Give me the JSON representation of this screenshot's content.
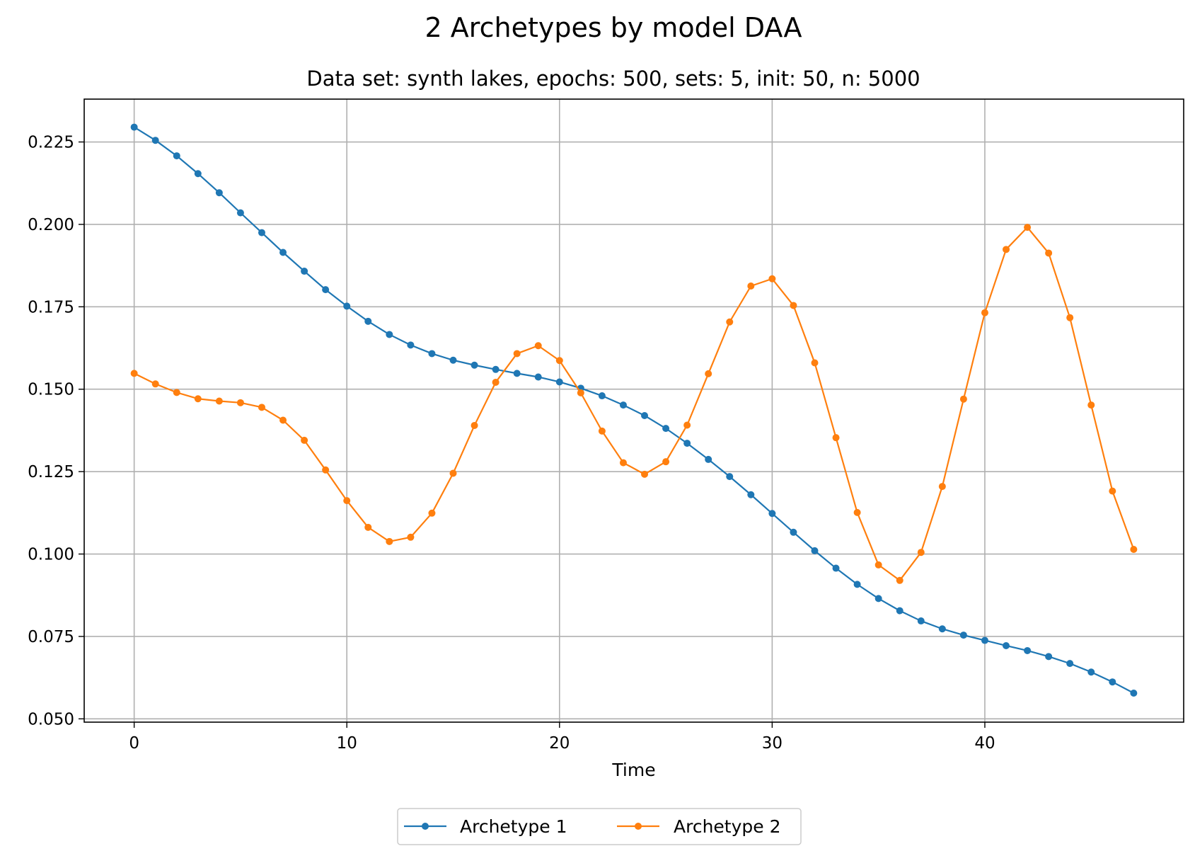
{
  "chart_data": {
    "type": "line",
    "title": "2 Archetypes by model DAA",
    "subtitle": "Data set: synth lakes, epochs: 500, sets: 5, init: 50, n: 5000",
    "xlabel": "Time",
    "ylabel": "",
    "xlim": [
      -2.35,
      49.35
    ],
    "ylim": [
      0.049,
      0.238
    ],
    "xticks": [
      0,
      10,
      20,
      30,
      40
    ],
    "xtick_labels": [
      "0",
      "10",
      "20",
      "30",
      "40"
    ],
    "yticks": [
      0.05,
      0.075,
      0.1,
      0.125,
      0.15,
      0.175,
      0.2,
      0.225
    ],
    "ytick_labels": [
      "0.050",
      "0.075",
      "0.100",
      "0.125",
      "0.150",
      "0.175",
      "0.200",
      "0.225"
    ],
    "grid": true,
    "legend_position": "bottom-center",
    "x": [
      0,
      1,
      2,
      3,
      4,
      5,
      6,
      7,
      8,
      9,
      10,
      11,
      12,
      13,
      14,
      15,
      16,
      17,
      18,
      19,
      20,
      21,
      22,
      23,
      24,
      25,
      26,
      27,
      28,
      29,
      30,
      31,
      32,
      33,
      34,
      35,
      36,
      37,
      38,
      39,
      40,
      41,
      42,
      43,
      44,
      45,
      46,
      47
    ],
    "series": [
      {
        "name": "Archetype 1",
        "color": "#1f77b4",
        "values": [
          0.2295,
          0.2255,
          0.2208,
          0.2154,
          0.2096,
          0.2035,
          0.1975,
          0.1915,
          0.1858,
          0.1802,
          0.1752,
          0.1706,
          0.1666,
          0.1634,
          0.1608,
          0.1588,
          0.1573,
          0.156,
          0.1548,
          0.1537,
          0.1522,
          0.1503,
          0.148,
          0.1452,
          0.142,
          0.1381,
          0.1336,
          0.1287,
          0.1235,
          0.118,
          0.1123,
          0.1066,
          0.101,
          0.0957,
          0.0908,
          0.0865,
          0.0828,
          0.0797,
          0.0773,
          0.0754,
          0.0738,
          0.0722,
          0.0707,
          0.0689,
          0.0668,
          0.0642,
          0.0612,
          0.0578
        ]
      },
      {
        "name": "Archetype 2",
        "color": "#ff7f0e",
        "values": [
          0.1548,
          0.1516,
          0.149,
          0.1471,
          0.1464,
          0.1459,
          0.1445,
          0.1406,
          0.1345,
          0.1255,
          0.1162,
          0.1081,
          0.1038,
          0.1051,
          0.1124,
          0.1245,
          0.139,
          0.1521,
          0.1608,
          0.1632,
          0.1587,
          0.1489,
          0.1373,
          0.1277,
          0.1242,
          0.128,
          0.1391,
          0.1547,
          0.1704,
          0.1813,
          0.1835,
          0.1754,
          0.158,
          0.1353,
          0.1126,
          0.0967,
          0.092,
          0.1005,
          0.1205,
          0.147,
          0.1732,
          0.1924,
          0.1991,
          0.1913,
          0.1717,
          0.1452,
          0.1191,
          0.1014
        ]
      }
    ]
  }
}
